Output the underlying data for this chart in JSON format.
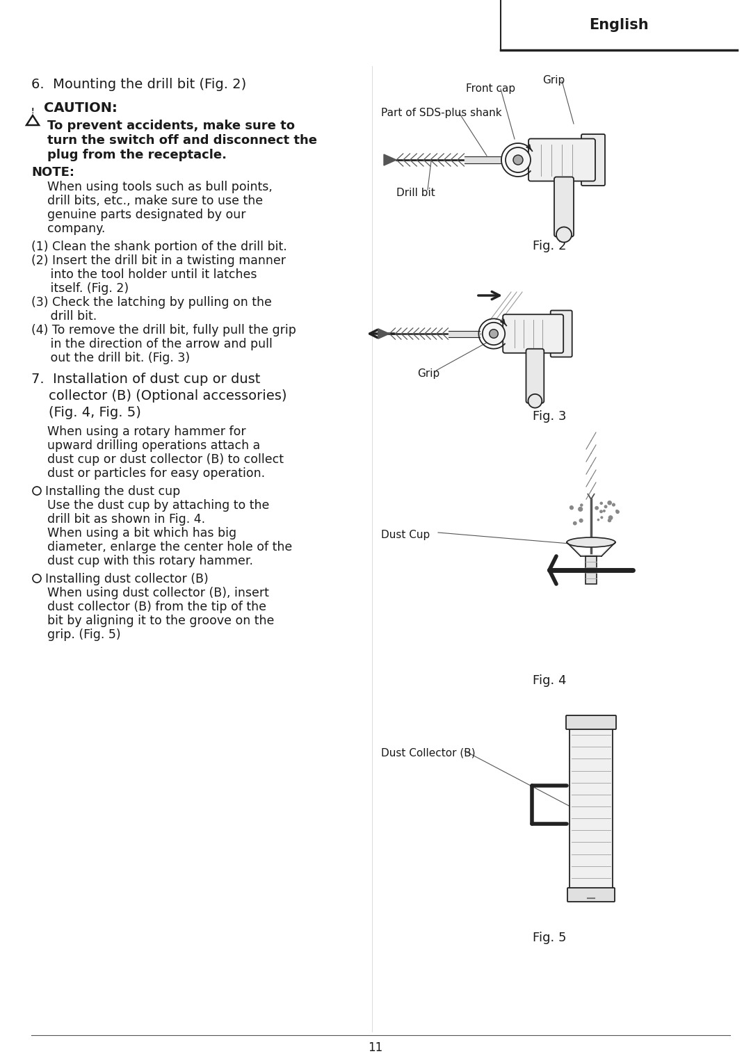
{
  "bg_color": "#ffffff",
  "text_color": "#1a1a1a",
  "page_width": 10.8,
  "page_height": 15.29,
  "header_text": "English",
  "page_number": "11",
  "section6_title": "6.  Mounting the drill bit (Fig. 2)",
  "caution_label": "CAUTION:",
  "caution_line1": "To prevent accidents, make sure to",
  "caution_line2": "turn the switch off and disconnect the",
  "caution_line3": "plug from the receptacle.",
  "note_label": "NOTE:",
  "note_lines": [
    "When using tools such as bull points,",
    "drill bits, etc., make sure to use the",
    "genuine parts designated by our",
    "company."
  ],
  "steps": [
    "(1) Clean the shank portion of the drill bit.",
    "(2) Insert the drill bit in a twisting manner",
    "     into the tool holder until it latches",
    "     itself. (Fig. 2)",
    "(3) Check the latching by pulling on the",
    "     drill bit.",
    "(4) To remove the drill bit, fully pull the grip",
    "     in the direction of the arrow and pull",
    "     out the drill bit. (Fig. 3)"
  ],
  "sec7_lines": [
    "7.  Installation of dust cup or dust",
    "    collector (B) (Optional accessories)",
    "    (Fig. 4, Fig. 5)"
  ],
  "sec7_body": [
    "When using a rotary hammer for",
    "upward drilling operations attach a",
    "dust cup or dust collector (B) to collect",
    "dust or particles for easy operation."
  ],
  "bullet1_label": "Installing the dust cup",
  "bullet1_body": [
    "Use the dust cup by attaching to the",
    "drill bit as shown in Fig. 4.",
    "When using a bit which has big",
    "diameter, enlarge the center hole of the",
    "dust cup with this rotary hammer."
  ],
  "bullet2_label": "Installing dust collector (B)",
  "bullet2_body": [
    "When using dust collector (B), insert",
    "dust collector (B) from the tip of the",
    "bit by aligning it to the groove on the",
    "grip. (Fig. 5)"
  ],
  "fig2_label": "Fig. 2",
  "fig3_label": "Fig. 3",
  "fig4_label": "Fig. 4",
  "fig5_label": "Fig. 5",
  "ann_front_cap": "Front cap",
  "ann_grip": "Grip",
  "ann_sds": "Part of SDS-plus shank",
  "ann_drillbit": "Drill bit",
  "ann_grip3": "Grip",
  "ann_dustcup": "Dust Cup",
  "ann_dustcol": "Dust Collector (B)"
}
